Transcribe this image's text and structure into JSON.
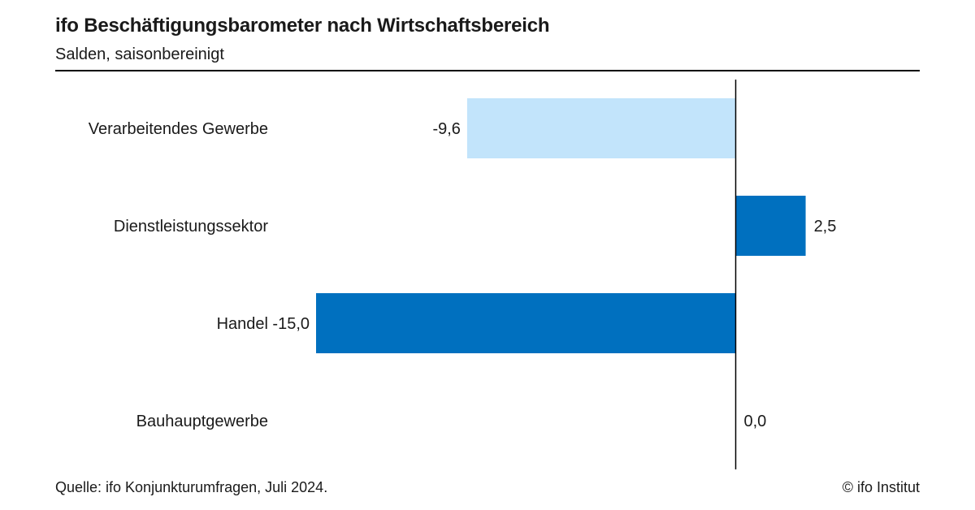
{
  "header": {
    "title": "ifo Beschäftigungsbarometer nach Wirtschaftsbereich",
    "subtitle": "Salden, saisonbereinigt"
  },
  "footer": {
    "source": "Quelle: ifo Konjunkturumfragen, Juli 2024.",
    "copyright": "© ifo Institut"
  },
  "chart_data": {
    "type": "bar",
    "orientation": "horizontal",
    "title": "ifo Beschäftigungsbarometer nach Wirtschaftsbereich",
    "subtitle": "Salden, saisonbereinigt",
    "categories": [
      "Verarbeitendes Gewerbe",
      "Dienstleistungssektor",
      "Handel",
      "Bauhauptgewerbe"
    ],
    "values": [
      -9.6,
      2.5,
      -15.0,
      0.0
    ],
    "value_labels": [
      "-9,6",
      "2,5",
      "-15,0",
      "0,0"
    ],
    "bar_colors": [
      "#c2e4fb",
      "#0070bf",
      "#0070bf",
      "#0070bf"
    ],
    "xlim": [
      -15.0,
      3.5
    ],
    "grid": false,
    "legend": "none"
  },
  "colors": {
    "light_bar": "#c2e4fb",
    "dark_bar": "#0070bf",
    "axis": "#000000"
  }
}
